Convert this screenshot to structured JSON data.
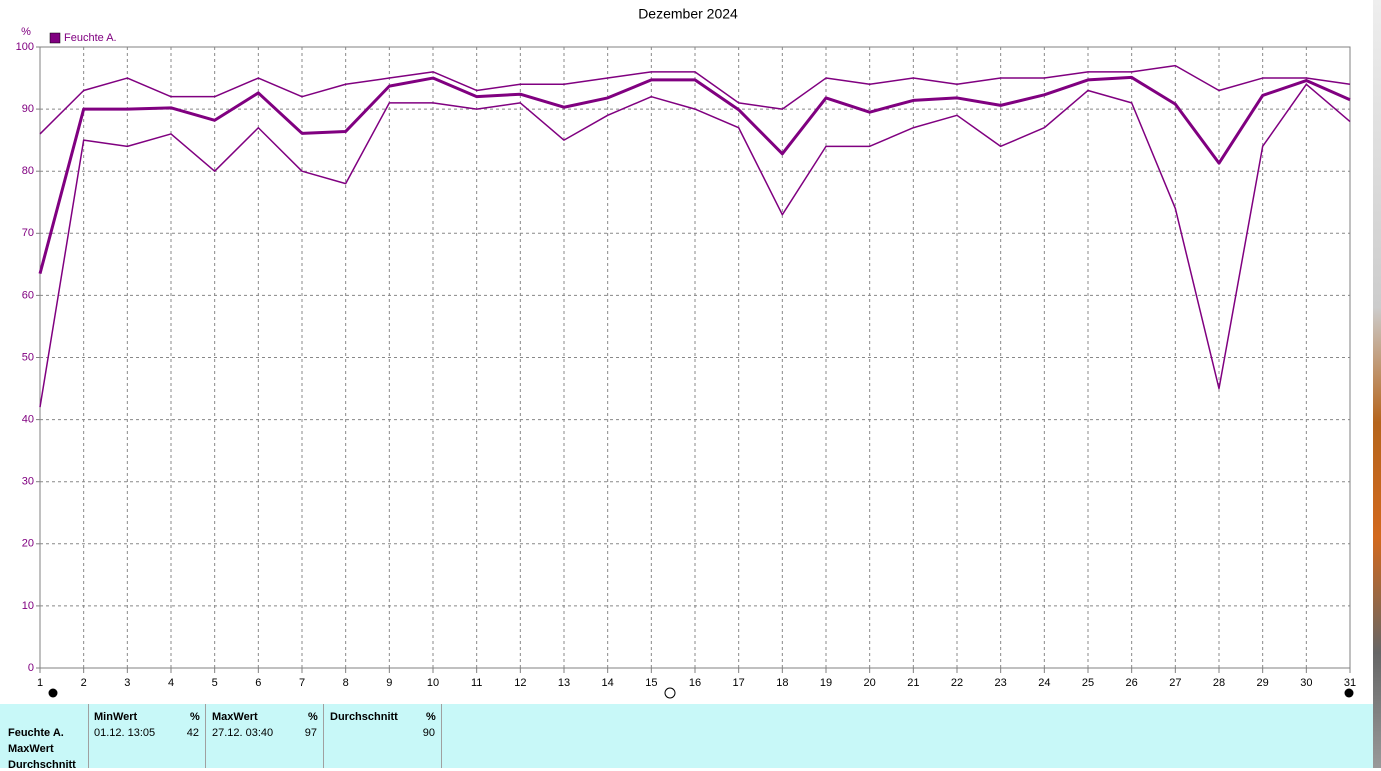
{
  "chart_data": {
    "type": "line",
    "title": "Dezember 2024",
    "y_label": "%",
    "legend": "Feuchte A.",
    "x": [
      1,
      2,
      3,
      4,
      5,
      6,
      7,
      8,
      9,
      10,
      11,
      12,
      13,
      14,
      15,
      16,
      17,
      18,
      19,
      20,
      21,
      22,
      23,
      24,
      25,
      26,
      27,
      28,
      29,
      30,
      31
    ],
    "xlim": [
      1,
      31
    ],
    "xticks": [
      1,
      2,
      3,
      4,
      5,
      6,
      7,
      8,
      9,
      10,
      11,
      12,
      13,
      14,
      15,
      16,
      17,
      18,
      19,
      20,
      21,
      22,
      23,
      24,
      25,
      26,
      27,
      28,
      29,
      30,
      31
    ],
    "ylim": [
      0,
      100
    ],
    "yticks": [
      0,
      10,
      20,
      30,
      40,
      50,
      60,
      70,
      80,
      90,
      100
    ],
    "grid": true,
    "series": [
      {
        "color": "#800080",
        "line_width": 1.5,
        "values": [
          86,
          93,
          95,
          92,
          92,
          95,
          92,
          94,
          95,
          96,
          93,
          94,
          94,
          95,
          96,
          96,
          91,
          90,
          95,
          94,
          95,
          94,
          95,
          95,
          96,
          96,
          97,
          93,
          95,
          95,
          94
        ]
      },
      {
        "color": "#800080",
        "line_width": 3,
        "values": [
          63.5,
          90,
          90,
          90.2,
          88.2,
          92.6,
          86.1,
          86.4,
          93.7,
          95,
          92,
          92.4,
          90.3,
          91.8,
          94.7,
          94.7,
          89.9,
          82.8,
          91.8,
          89.5,
          91.4,
          91.8,
          90.6,
          92.3,
          94.7,
          95.1,
          90.8,
          81.3,
          92.2,
          94.6,
          91.5
        ]
      },
      {
        "color": "#800080",
        "line_width": 1.5,
        "values": [
          42,
          85,
          84,
          86,
          80,
          87,
          80,
          78,
          91,
          91,
          90,
          91,
          85,
          89,
          92,
          90,
          87,
          73,
          84,
          84,
          87,
          89,
          84,
          87,
          93,
          91,
          74,
          45,
          84,
          94,
          88
        ]
      }
    ]
  },
  "table": {
    "row_labels": [
      "Feuchte A.",
      "MaxWert",
      "Durchschnitt"
    ],
    "columns": [
      {
        "header": "MinWert",
        "unit": "%",
        "time": "01.12.  13:05",
        "value": "42"
      },
      {
        "header": "MaxWert",
        "unit": "%",
        "time": "27.12.  03:40",
        "value": "97"
      },
      {
        "header": "Durchschnitt",
        "unit": "%",
        "value": "90"
      }
    ]
  }
}
